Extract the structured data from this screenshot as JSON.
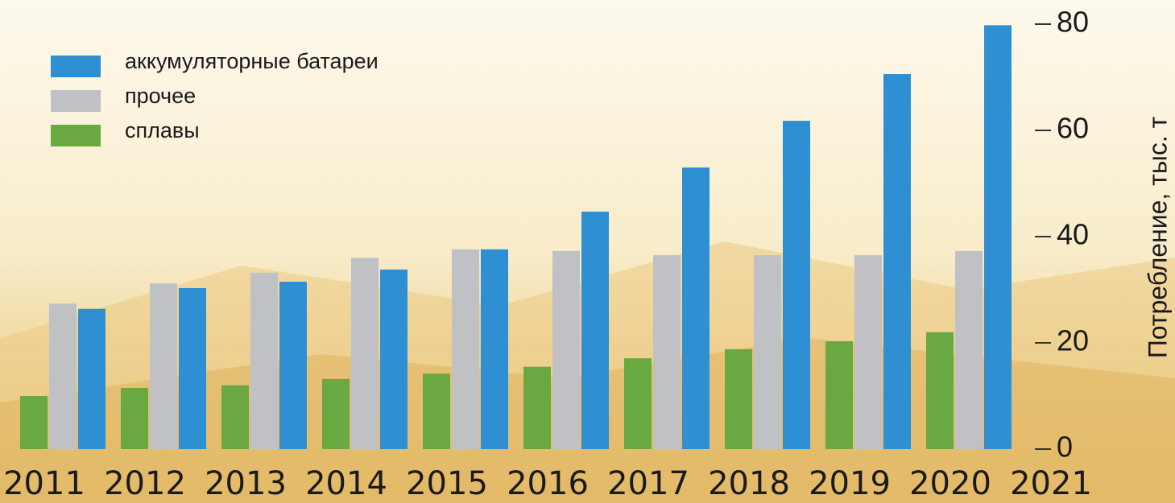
{
  "chart_data": {
    "type": "bar",
    "y_label": "Потребление, тыс. т",
    "categories": [
      "2011",
      "2012",
      "2013",
      "2014",
      "2015",
      "2016",
      "2017",
      "2018",
      "2019",
      "2020",
      "2021"
    ],
    "series": [
      {
        "name": "аккумуляторные батареи",
        "color": "#2f8fd3",
        "values": [
          26.4,
          30.3,
          31.5,
          33.8,
          37.6,
          44.7,
          53,
          61.8,
          70.6,
          79.8,
          null
        ]
      },
      {
        "name": "прочее",
        "color": "#bfc1c4",
        "values": [
          27.4,
          31.2,
          33.2,
          36,
          37.6,
          37.3,
          36.5,
          36.5,
          36.5,
          37.3,
          null
        ]
      },
      {
        "name": "сплавы",
        "color": "#6aa842",
        "values": [
          10,
          11.5,
          12,
          13.2,
          14.2,
          15.5,
          17.1,
          18.8,
          20.3,
          22,
          null
        ]
      }
    ],
    "ylim": [
      0,
      80
    ],
    "yticks": [
      0,
      20,
      40,
      60,
      80
    ],
    "grid": false,
    "legend": "top-left"
  }
}
